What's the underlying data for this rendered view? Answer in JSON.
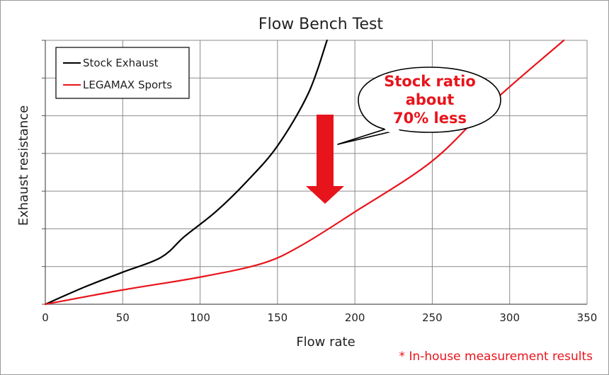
{
  "chart_data": {
    "type": "line",
    "title": "Flow Bench Test",
    "xlabel": "Flow rate",
    "ylabel": "Exhaust resistance",
    "xlim": [
      0,
      350
    ],
    "ylim": [
      0,
      7
    ],
    "x_ticks": [
      "0",
      "50",
      "100",
      "150",
      "200",
      "250",
      "300",
      "350"
    ],
    "x_tick_values": [
      0,
      50,
      100,
      150,
      200,
      250,
      300,
      350
    ],
    "y_tick_values": [
      0,
      1,
      2,
      3,
      4,
      5,
      6,
      7
    ],
    "y_tick_labels_shown": false,
    "grid": true,
    "legend_position": "top-left",
    "series": [
      {
        "name": "Stock Exhaust",
        "color": "#000000",
        "x": [
          0,
          25,
          50,
          75,
          90,
          110,
          130,
          150,
          170,
          182
        ],
        "y": [
          0,
          0.45,
          0.85,
          1.25,
          1.8,
          2.45,
          3.25,
          4.2,
          5.6,
          7.0
        ]
      },
      {
        "name": "LEGAMAX Sports",
        "color": "#e8141b",
        "x": [
          0,
          50,
          100,
          140,
          165,
          200,
          250,
          290,
          335
        ],
        "y": [
          0,
          0.38,
          0.72,
          1.08,
          1.55,
          2.45,
          3.8,
          5.4,
          7.0
        ]
      }
    ],
    "annotation": {
      "lines": [
        "Stock ratio",
        "about",
        "70% less"
      ],
      "color": "#e8141b",
      "arrow_color": "#e8141b"
    },
    "footnote": "* In-house measurement results"
  }
}
